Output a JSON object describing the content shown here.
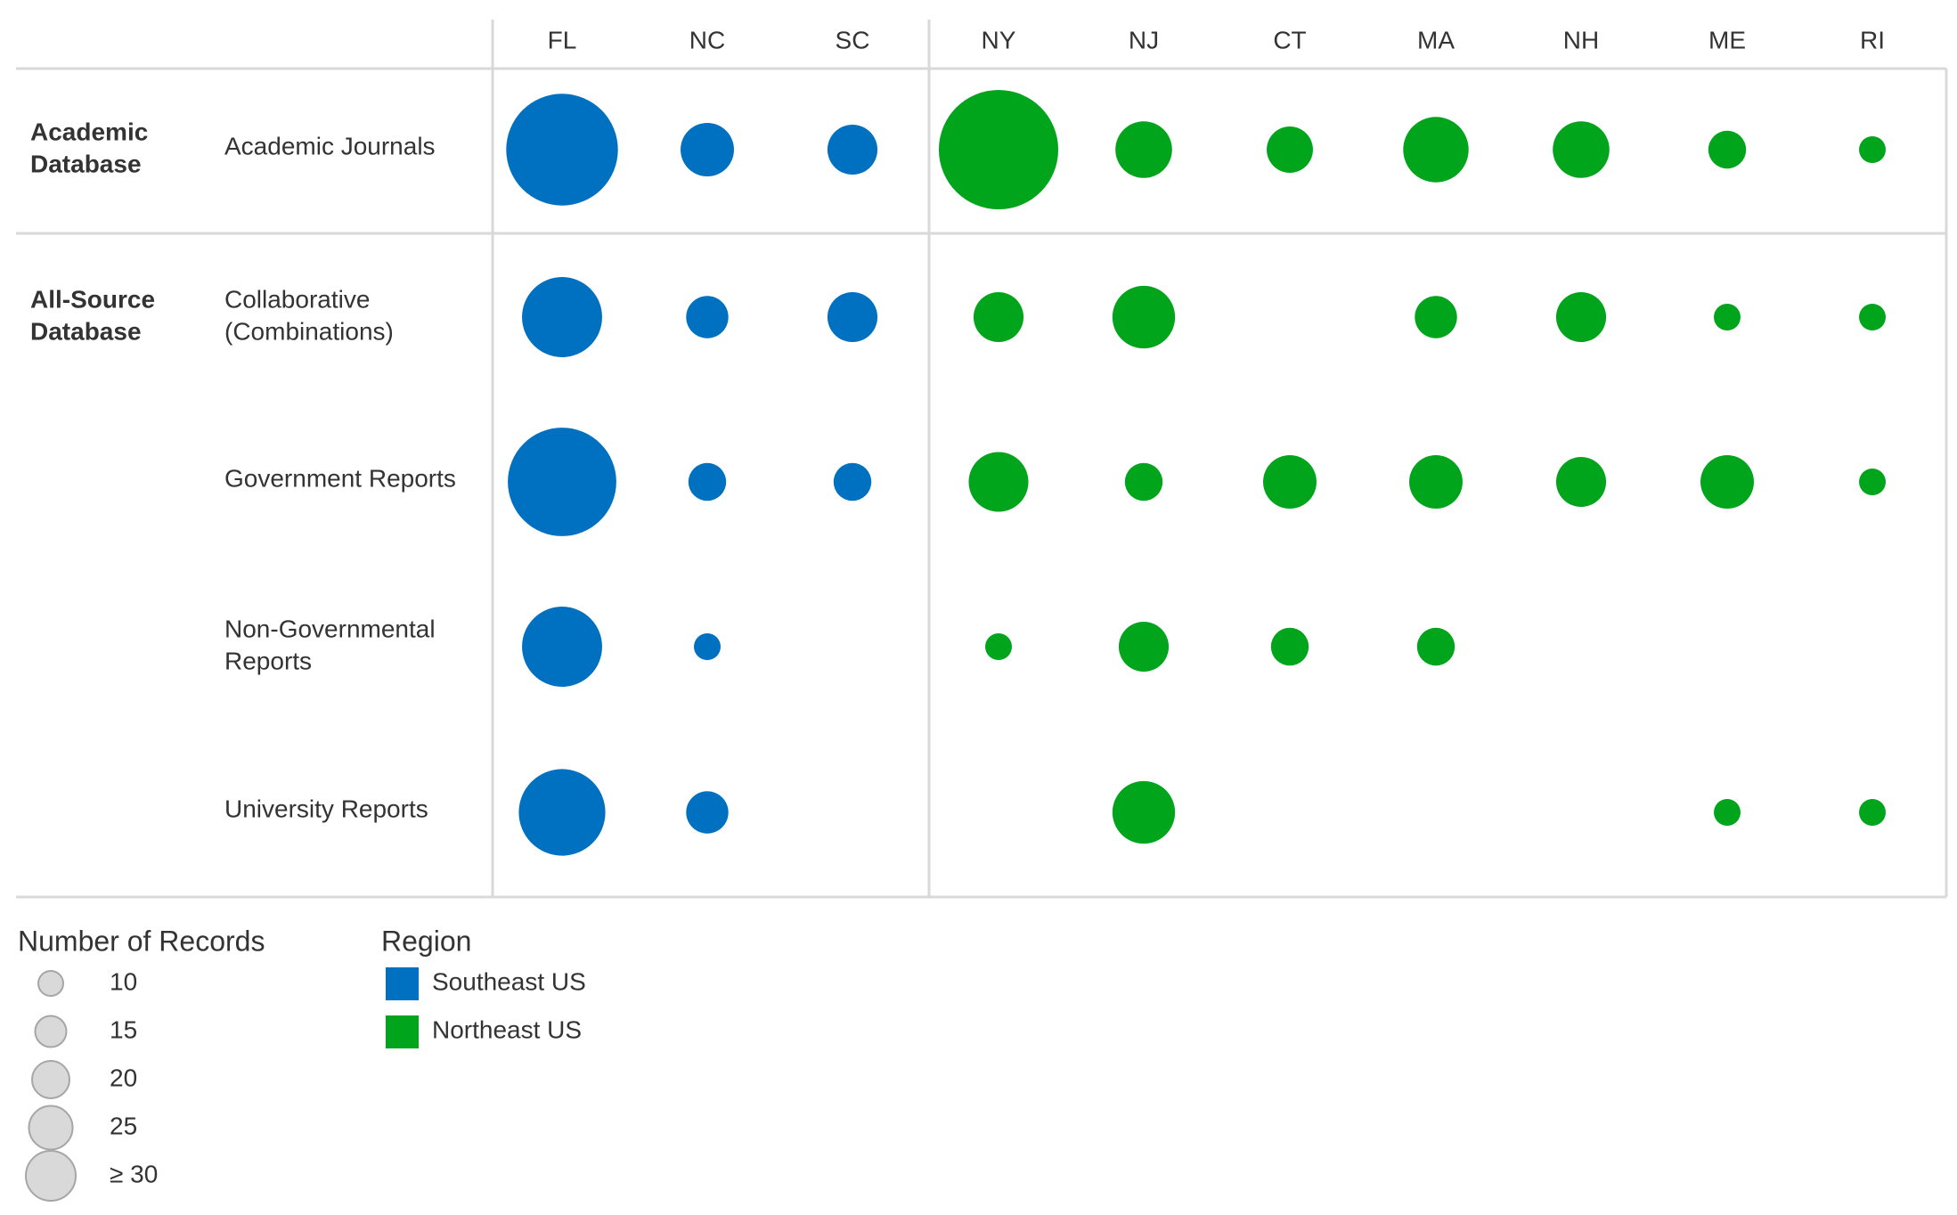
{
  "chart_data": {
    "type": "scatter",
    "columns": [
      "FL",
      "NC",
      "SC",
      "NY",
      "NJ",
      "CT",
      "MA",
      "NH",
      "ME",
      "RI"
    ],
    "column_regions": [
      "Southeast US",
      "Southeast US",
      "Southeast US",
      "Northeast US",
      "Northeast US",
      "Northeast US",
      "Northeast US",
      "Northeast US",
      "Northeast US",
      "Northeast US"
    ],
    "row_groups": [
      {
        "label": [
          "Academic",
          "Database"
        ],
        "rows": [
          {
            "label": [
              "Academic Journals"
            ],
            "values": [
              35,
              8,
              7,
              40,
              9,
              6,
              12,
              9,
              4,
              2
            ]
          }
        ]
      },
      {
        "label": [
          "All-Source",
          "Database"
        ],
        "rows": [
          {
            "label": [
              "Collaborative",
              "(Combinations)"
            ],
            "values": [
              18,
              5,
              7,
              7,
              11,
              null,
              5,
              7,
              2,
              2
            ]
          },
          {
            "label": [
              "Government Reports"
            ],
            "values": [
              33,
              4,
              4,
              10,
              4,
              8,
              8,
              7,
              8,
              2
            ]
          },
          {
            "label": [
              "Non-Governmental",
              "Reports"
            ],
            "values": [
              18,
              2,
              null,
              2,
              7,
              4,
              4,
              null,
              null,
              null
            ]
          },
          {
            "label": [
              "University Reports"
            ],
            "values": [
              21,
              5,
              null,
              null,
              11,
              null,
              null,
              null,
              2,
              2
            ]
          }
        ]
      }
    ],
    "size_legend": {
      "title": "Number of Records",
      "items": [
        {
          "label": "10",
          "value": 10
        },
        {
          "label": "15",
          "value": 15
        },
        {
          "label": "20",
          "value": 20
        },
        {
          "label": "25",
          "value": 25
        },
        {
          "label": "≥ 30",
          "value": 30
        }
      ]
    },
    "color_legend": {
      "title": "Region",
      "items": [
        {
          "label": "Southeast US",
          "color": "#0070c0"
        },
        {
          "label": "Northeast US",
          "color": "#00a51c"
        }
      ]
    },
    "colors": {
      "Southeast US": "#0070c0",
      "Northeast US": "#00a51c",
      "size_legend_fill": "#d9d9d9",
      "size_legend_stroke": "#a6a6a6"
    }
  }
}
